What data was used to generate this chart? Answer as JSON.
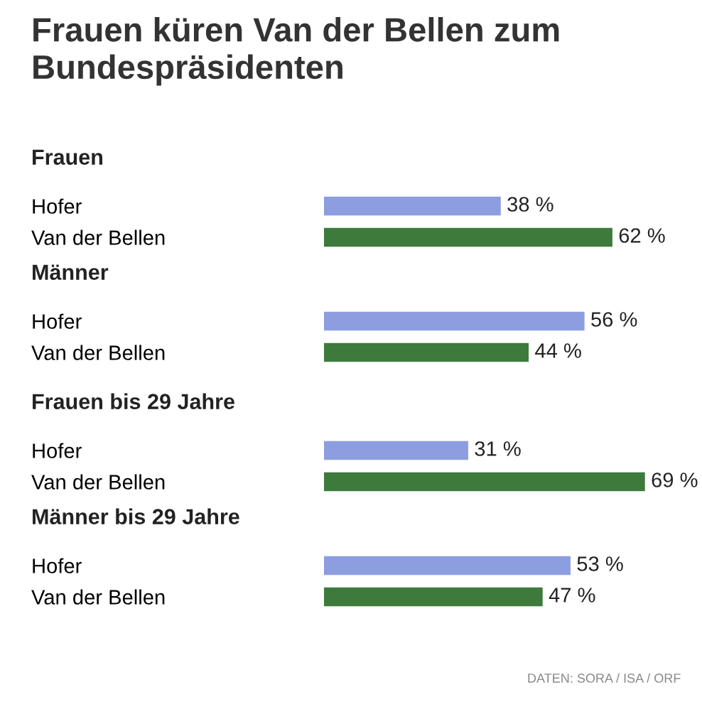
{
  "chart_data": [
    {
      "type": "bar",
      "orientation": "horizontal",
      "title": "Frauen küren Van der Bellen zum Bundespräsidenten",
      "subtitle": "Frauen",
      "categories": [
        "Hofer",
        "Van der Bellen"
      ],
      "values": [
        38,
        62
      ],
      "value_labels": [
        "38 %",
        "62 %"
      ],
      "colors": [
        "#8c9ee0",
        "#3d7a3c"
      ],
      "grid": false,
      "legend": false,
      "tick_labels": "y"
    },
    {
      "type": "bar",
      "orientation": "horizontal",
      "subtitle": "Männer",
      "categories": [
        "Hofer",
        "Van der Bellen"
      ],
      "values": [
        56,
        44
      ],
      "value_labels": [
        "56 %",
        "44 %"
      ],
      "colors": [
        "#8c9ee0",
        "#3d7a3c"
      ],
      "grid": false,
      "legend": false,
      "tick_labels": "y"
    },
    {
      "type": "bar",
      "orientation": "horizontal",
      "subtitle": "Frauen bis 29 Jahre",
      "categories": [
        "Hofer",
        "Van der Bellen"
      ],
      "values": [
        31,
        69
      ],
      "value_labels": [
        "31 %",
        "69 %"
      ],
      "colors": [
        "#8c9ee0",
        "#3d7a3c"
      ],
      "grid": false,
      "legend": false,
      "tick_labels": "y"
    },
    {
      "type": "bar",
      "orientation": "horizontal",
      "subtitle": "Männer bis 29 Jahre",
      "categories": [
        "Hofer",
        "Van der Bellen"
      ],
      "values": [
        53,
        47
      ],
      "value_labels": [
        "53 %",
        "47 %"
      ],
      "colors": [
        "#8c9ee0",
        "#3d7a3c"
      ],
      "grid": false,
      "legend": false,
      "tick_labels": "y",
      "annotations": [
        "DATEN: SORA / ISA / ORF"
      ]
    }
  ]
}
